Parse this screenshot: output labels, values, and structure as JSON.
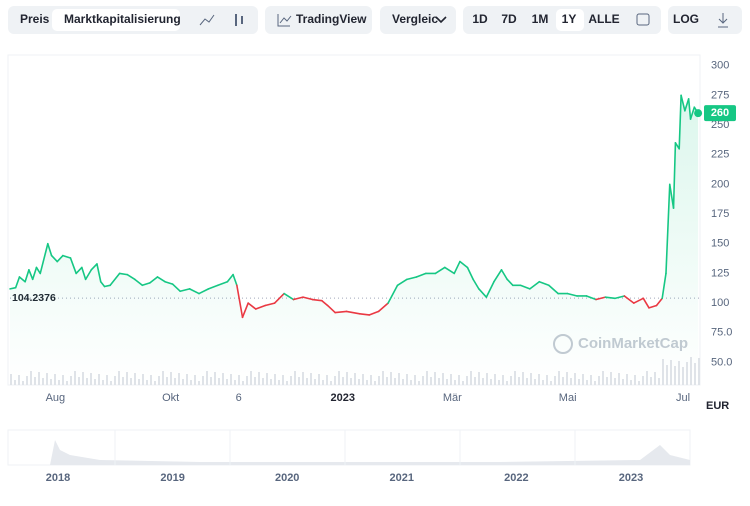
{
  "toolbar": {
    "tabs": [
      "Preis",
      "Marktkapitalisierung"
    ],
    "tradingview": "TradingView",
    "compare": "Vergleic",
    "ranges": [
      "1D",
      "7D",
      "1M",
      "1Y",
      "ALLE"
    ],
    "log": "LOG"
  },
  "chart_data": {
    "type": "line",
    "color_up": "#16c784",
    "color_down": "#ea3943",
    "x": [
      0,
      3,
      5,
      8,
      10,
      12,
      14,
      16,
      20,
      22,
      25,
      28,
      32,
      35,
      38,
      40,
      43,
      46,
      48,
      50,
      53,
      58,
      62,
      66,
      70,
      74,
      78,
      82,
      86,
      90,
      95,
      100,
      105,
      110,
      115,
      118,
      120,
      123,
      126,
      130,
      135,
      140,
      145,
      150,
      155,
      160,
      165,
      168,
      172,
      178,
      185,
      190,
      195,
      200,
      205,
      210,
      215,
      220,
      225,
      230,
      235,
      238,
      242,
      245,
      248,
      252,
      256,
      260,
      263,
      266,
      270,
      275,
      280,
      285,
      290,
      295,
      300,
      305,
      310,
      315,
      320,
      325,
      330,
      335,
      338,
      342,
      345,
      347,
      349,
      351,
      352,
      354,
      355,
      357,
      359,
      360,
      362,
      364
    ],
    "values": [
      112,
      113,
      122,
      118,
      128,
      120,
      130,
      125,
      150,
      140,
      135,
      140,
      138,
      125,
      130,
      120,
      128,
      133,
      118,
      114,
      115,
      125,
      124,
      120,
      115,
      117,
      122,
      118,
      116,
      110,
      112,
      108,
      112,
      115,
      118,
      124,
      115,
      88,
      100,
      95,
      98,
      100,
      108,
      103,
      105,
      103,
      102,
      98,
      92,
      93,
      91,
      90,
      93,
      100,
      115,
      120,
      122,
      125,
      125,
      130,
      125,
      135,
      130,
      120,
      112,
      105,
      118,
      128,
      120,
      115,
      115,
      112,
      118,
      115,
      108,
      108,
      106,
      106,
      103,
      105,
      104,
      106,
      100,
      104,
      96,
      98,
      104,
      125,
      200,
      180,
      235,
      230,
      275,
      262,
      272,
      255,
      265,
      260
    ],
    "baseline": 104.2376,
    "last_price": 260,
    "xlim": [
      0,
      365
    ],
    "xticks": [
      {
        "value": 24,
        "label": "Aug"
      },
      {
        "value": 85,
        "label": "Okt"
      },
      {
        "value": 121,
        "label": "6"
      },
      {
        "value": 176,
        "label": "2023"
      },
      {
        "value": 234,
        "label": "Mär"
      },
      {
        "value": 295,
        "label": "Mai"
      },
      {
        "value": 356,
        "label": "Jul"
      }
    ],
    "ylim": [
      31,
      309
    ],
    "yticks": [
      {
        "value": 50,
        "label": "50.0"
      },
      {
        "value": 75,
        "label": "75.0"
      },
      100,
      125,
      150,
      175,
      200,
      225,
      250,
      275,
      300
    ],
    "currency": "EUR",
    "watermark": "CoinMarketCap",
    "navigator_years": [
      "2018",
      "2019",
      "2020",
      "2021",
      "2022",
      "2023"
    ]
  }
}
